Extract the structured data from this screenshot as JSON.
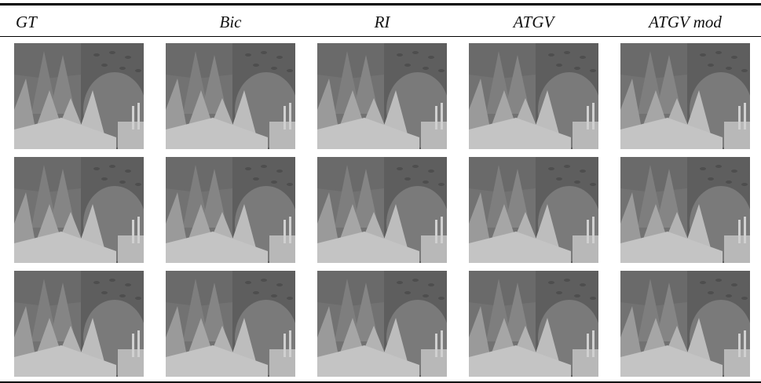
{
  "header": {
    "columns": [
      "GT",
      "Bic",
      "RI",
      "ATGV",
      "ATGV mod"
    ]
  }
}
